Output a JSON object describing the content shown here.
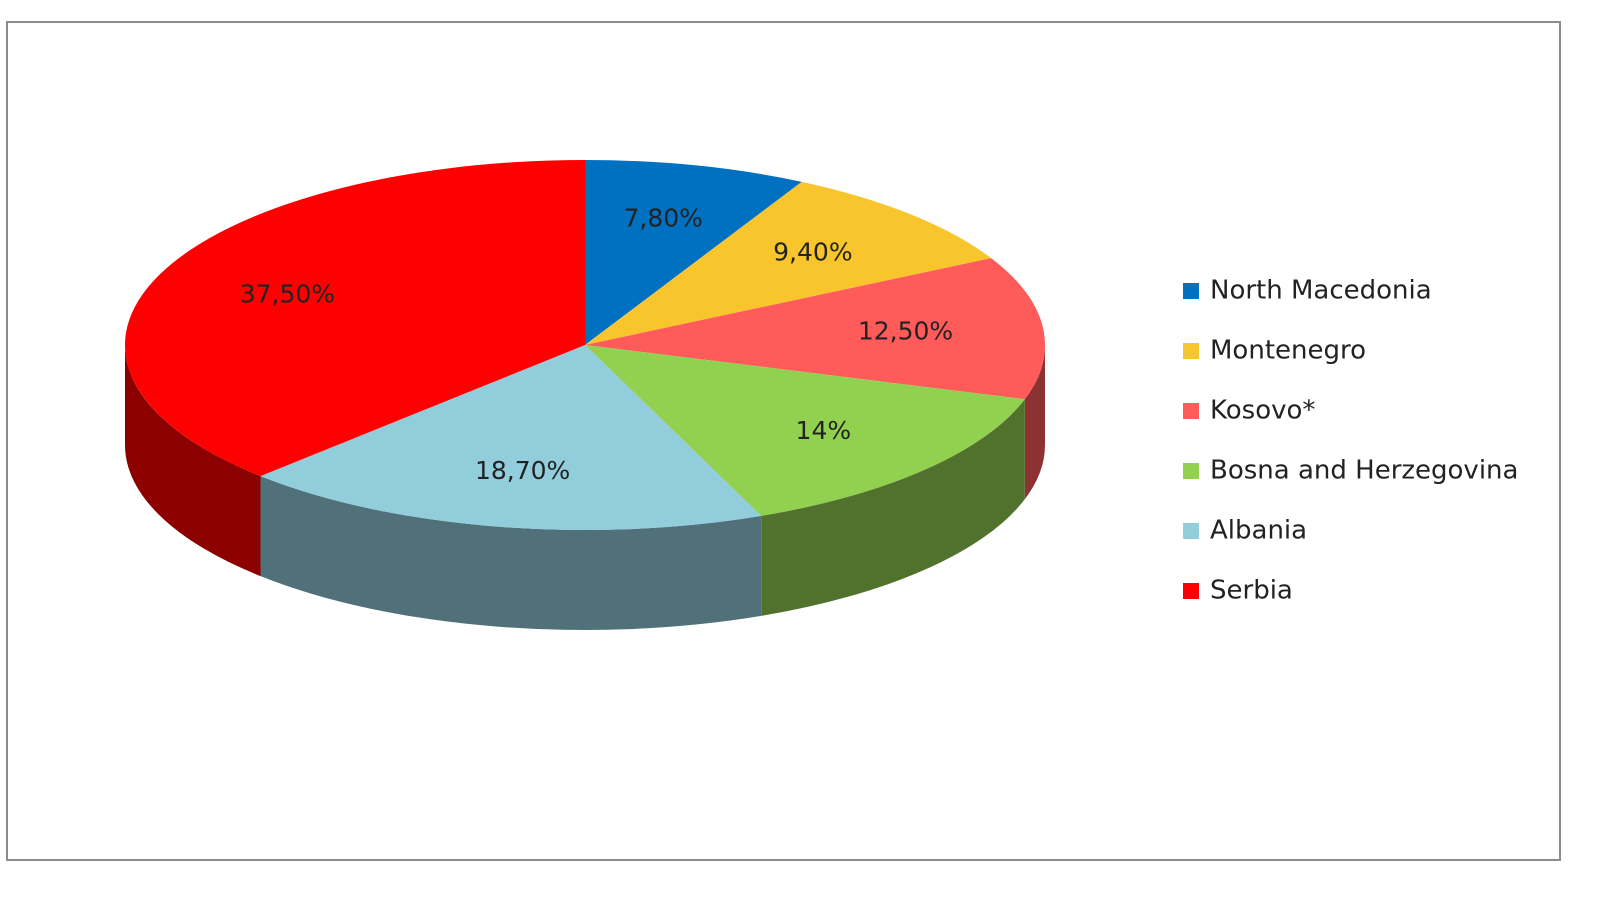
{
  "chart_data": {
    "type": "pie3d",
    "categories": [
      "North Macedonia",
      "Montenegro",
      "Kosovo*",
      "Bosna and Herzegovina",
      "Albania",
      "Serbia"
    ],
    "values": [
      7.8,
      9.4,
      12.5,
      14,
      18.7,
      37.5
    ],
    "value_labels": [
      "7,80%",
      "9,40%",
      "12,50%",
      "14%",
      "18,70%",
      "37,50%"
    ],
    "colors": [
      "#0070c0",
      "#f9c52c",
      "#ff5b5b",
      "#92d050",
      "#92cddc",
      "#ff0000"
    ],
    "legend": "right"
  }
}
